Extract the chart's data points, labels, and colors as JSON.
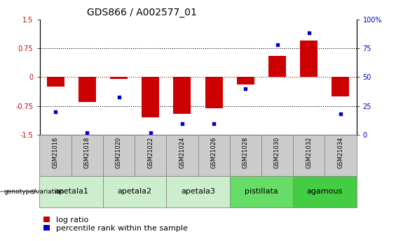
{
  "title": "GDS866 / A002577_01",
  "samples": [
    "GSM21016",
    "GSM21018",
    "GSM21020",
    "GSM21022",
    "GSM21024",
    "GSM21026",
    "GSM21028",
    "GSM21030",
    "GSM21032",
    "GSM21034"
  ],
  "log_ratio": [
    -0.25,
    -0.65,
    -0.05,
    -1.05,
    -0.95,
    -0.8,
    -0.2,
    0.55,
    0.95,
    -0.5
  ],
  "percentile": [
    20,
    2,
    33,
    2,
    10,
    10,
    40,
    78,
    88,
    18
  ],
  "ylim_left": [
    -1.5,
    1.5
  ],
  "ylim_right": [
    0,
    100
  ],
  "yticks_left": [
    -1.5,
    -0.75,
    0,
    0.75,
    1.5
  ],
  "yticks_right": [
    0,
    25,
    50,
    75,
    100
  ],
  "ytick_labels_left": [
    "-1.5",
    "-0.75",
    "0",
    "0.75",
    "1.5"
  ],
  "ytick_labels_right": [
    "0",
    "25",
    "50",
    "75",
    "100%"
  ],
  "hlines_dotted": [
    -0.75,
    0.75
  ],
  "bar_color": "#cc0000",
  "dot_color": "#0000cc",
  "bar_width": 0.55,
  "groups": [
    {
      "label": "apetala1",
      "indices": [
        0,
        1
      ],
      "color": "#cceecc"
    },
    {
      "label": "apetala2",
      "indices": [
        2,
        3
      ],
      "color": "#cceecc"
    },
    {
      "label": "apetala3",
      "indices": [
        4,
        5
      ],
      "color": "#cceecc"
    },
    {
      "label": "pistillata",
      "indices": [
        6,
        7
      ],
      "color": "#66dd66"
    },
    {
      "label": "agamous",
      "indices": [
        8,
        9
      ],
      "color": "#44cc44"
    }
  ],
  "sample_box_color": "#cccccc",
  "legend_bar_label": "log ratio",
  "legend_dot_label": "percentile rank within the sample",
  "genotype_label": "genotype/variation",
  "title_fontsize": 10,
  "tick_fontsize": 7,
  "sample_fontsize": 6,
  "group_fontsize": 8,
  "legend_fontsize": 8
}
